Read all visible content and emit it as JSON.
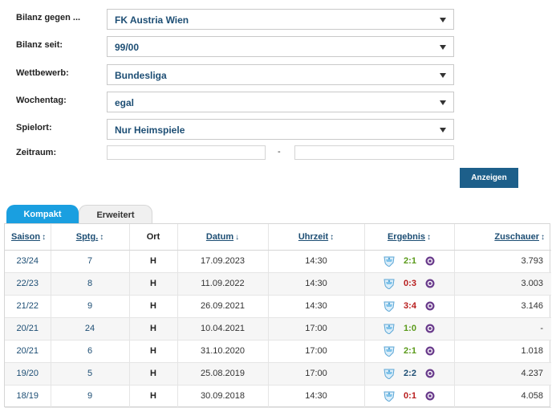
{
  "filters": {
    "bilanz_gegen": {
      "label": "Bilanz gegen ...",
      "value": "FK Austria Wien"
    },
    "bilanz_seit": {
      "label": "Bilanz seit:",
      "value": "99/00"
    },
    "wettbewerb": {
      "label": "Wettbewerb:",
      "value": "Bundesliga"
    },
    "wochentag": {
      "label": "Wochentag:",
      "value": "egal"
    },
    "spielort": {
      "label": "Spielort:",
      "value": "Nur Heimspiele"
    },
    "zeitraum": {
      "label": "Zeitraum:",
      "from": "",
      "to": "",
      "separator": "-"
    },
    "submit_label": "Anzeigen"
  },
  "tabs": [
    {
      "label": "Kompakt",
      "active": true
    },
    {
      "label": "Erweitert",
      "active": false
    }
  ],
  "table": {
    "headers": {
      "saison": "Saison",
      "sptg": "Sptg.",
      "ort": "Ort",
      "datum": "Datum",
      "uhrzeit": "Uhrzeit",
      "ergebnis": "Ergebnis",
      "zuschauer": "Zuschauer"
    },
    "sort_arrows": {
      "both": "↕",
      "down": "↓"
    },
    "rows": [
      {
        "saison": "23/24",
        "sptg": "7",
        "ort": "H",
        "datum": "17.09.2023",
        "uhrzeit": "14:30",
        "ergebnis": "2:1",
        "outcome": "win",
        "zuschauer": "3.793"
      },
      {
        "saison": "22/23",
        "sptg": "8",
        "ort": "H",
        "datum": "11.09.2022",
        "uhrzeit": "14:30",
        "ergebnis": "0:3",
        "outcome": "loss",
        "zuschauer": "3.003"
      },
      {
        "saison": "21/22",
        "sptg": "9",
        "ort": "H",
        "datum": "26.09.2021",
        "uhrzeit": "14:30",
        "ergebnis": "3:4",
        "outcome": "loss",
        "zuschauer": "3.146"
      },
      {
        "saison": "20/21",
        "sptg": "24",
        "ort": "H",
        "datum": "10.04.2021",
        "uhrzeit": "17:00",
        "ergebnis": "1:0",
        "outcome": "win",
        "zuschauer": "-"
      },
      {
        "saison": "20/21",
        "sptg": "6",
        "ort": "H",
        "datum": "31.10.2020",
        "uhrzeit": "17:00",
        "ergebnis": "2:1",
        "outcome": "win",
        "zuschauer": "1.018"
      },
      {
        "saison": "19/20",
        "sptg": "5",
        "ort": "H",
        "datum": "25.08.2019",
        "uhrzeit": "17:00",
        "ergebnis": "2:2",
        "outcome": "draw",
        "zuschauer": "4.237"
      },
      {
        "saison": "18/19",
        "sptg": "9",
        "ort": "H",
        "datum": "30.09.2018",
        "uhrzeit": "14:30",
        "ergebnis": "0:1",
        "outcome": "loss",
        "zuschauer": "4.058"
      }
    ]
  },
  "icons": {
    "home_crest": "club-crest-icon",
    "away_crest": "austria-wien-crest-icon",
    "dropdown": "chevron-down-icon"
  },
  "colors": {
    "accent": "#1a9fe0",
    "button": "#1d5f8a",
    "link": "#1d4e74",
    "win": "#5a9a1a",
    "loss": "#b81d1d",
    "draw": "#1d4e74"
  }
}
